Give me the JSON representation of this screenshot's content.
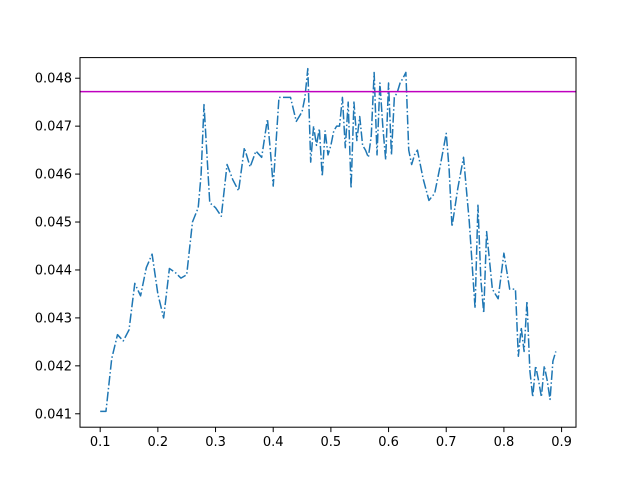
{
  "chart_data": {
    "type": "line",
    "title": "",
    "xlabel": "",
    "ylabel": "",
    "xlim": [
      0.065,
      0.925
    ],
    "ylim": [
      0.04072,
      0.04843
    ],
    "xticks": [
      0.1,
      0.2,
      0.3,
      0.4,
      0.5,
      0.6,
      0.7,
      0.8,
      0.9
    ],
    "xtick_labels": [
      "0.1",
      "0.2",
      "0.3",
      "0.4",
      "0.5",
      "0.6",
      "0.7",
      "0.8",
      "0.9"
    ],
    "yticks": [
      0.041,
      0.042,
      0.043,
      0.044,
      0.045,
      0.046,
      0.047,
      0.048
    ],
    "ytick_labels": [
      "0.041",
      "0.042",
      "0.043",
      "0.044",
      "0.045",
      "0.046",
      "0.047",
      "0.048"
    ],
    "grid": false,
    "series": [
      {
        "color": "#1f77b4",
        "line_style": "dashdot",
        "x": [
          0.1,
          0.11,
          0.12,
          0.13,
          0.14,
          0.15,
          0.16,
          0.17,
          0.18,
          0.19,
          0.2,
          0.21,
          0.22,
          0.23,
          0.24,
          0.25,
          0.26,
          0.27,
          0.275,
          0.28,
          0.29,
          0.3,
          0.31,
          0.32,
          0.33,
          0.34,
          0.35,
          0.36,
          0.37,
          0.38,
          0.39,
          0.395,
          0.4,
          0.41,
          0.42,
          0.43,
          0.44,
          0.45,
          0.455,
          0.46,
          0.465,
          0.47,
          0.475,
          0.48,
          0.485,
          0.49,
          0.495,
          0.5,
          0.505,
          0.51,
          0.515,
          0.52,
          0.525,
          0.53,
          0.535,
          0.54,
          0.545,
          0.55,
          0.555,
          0.56,
          0.565,
          0.57,
          0.575,
          0.58,
          0.585,
          0.59,
          0.595,
          0.6,
          0.605,
          0.61,
          0.615,
          0.62,
          0.625,
          0.63,
          0.635,
          0.64,
          0.645,
          0.65,
          0.66,
          0.67,
          0.68,
          0.69,
          0.7,
          0.705,
          0.71,
          0.72,
          0.73,
          0.74,
          0.745,
          0.75,
          0.755,
          0.76,
          0.765,
          0.77,
          0.775,
          0.78,
          0.79,
          0.8,
          0.81,
          0.82,
          0.825,
          0.83,
          0.835,
          0.84,
          0.845,
          0.85,
          0.855,
          0.86,
          0.865,
          0.87,
          0.875,
          0.88,
          0.885,
          0.89
        ],
        "y": [
          0.04105,
          0.04105,
          0.04215,
          0.04265,
          0.04252,
          0.04275,
          0.04372,
          0.04346,
          0.04405,
          0.04433,
          0.0435,
          0.043,
          0.04403,
          0.04395,
          0.04383,
          0.0439,
          0.045,
          0.0453,
          0.046,
          0.04745,
          0.0454,
          0.0453,
          0.04512,
          0.0462,
          0.04588,
          0.04565,
          0.04655,
          0.04615,
          0.04648,
          0.04635,
          0.04715,
          0.0465,
          0.04575,
          0.0476,
          0.0476,
          0.0476,
          0.0471,
          0.0473,
          0.0476,
          0.0482,
          0.04625,
          0.047,
          0.0466,
          0.04695,
          0.04595,
          0.0469,
          0.0464,
          0.0466,
          0.0469,
          0.047,
          0.047,
          0.0476,
          0.04655,
          0.0475,
          0.0457,
          0.0475,
          0.0467,
          0.0472,
          0.0466,
          0.0465,
          0.04635,
          0.0468,
          0.04812,
          0.0464,
          0.0479,
          0.047,
          0.0463,
          0.0479,
          0.0464,
          0.0476,
          0.0477,
          0.0479,
          0.048,
          0.04812,
          0.0465,
          0.0462,
          0.0464,
          0.0465,
          0.0459,
          0.04545,
          0.0456,
          0.0462,
          0.04685,
          0.0461,
          0.0449,
          0.0457,
          0.04635,
          0.045,
          0.0441,
          0.0432,
          0.04535,
          0.0438,
          0.0431,
          0.0448,
          0.0442,
          0.0436,
          0.0434,
          0.04435,
          0.0436,
          0.0436,
          0.0422,
          0.0428,
          0.0423,
          0.04335,
          0.0419,
          0.04135,
          0.042,
          0.0417,
          0.04135,
          0.042,
          0.0417,
          0.0413,
          0.0421,
          0.0423
        ]
      },
      {
        "color": "#bf00bf",
        "line_style": "solid",
        "type": "hline",
        "y": 0.04772
      }
    ]
  }
}
